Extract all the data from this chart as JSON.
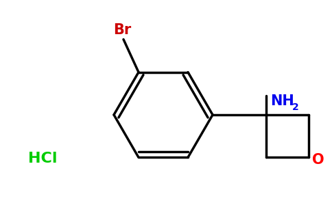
{
  "background_color": "#ffffff",
  "bond_color": "#000000",
  "br_color": "#cc0000",
  "nh2_color": "#0000ee",
  "o_color": "#ff0000",
  "hcl_color": "#00cc00",
  "br_label": "Br",
  "nh2_label": "NH",
  "nh2_sub": "2",
  "o_label": "O",
  "hcl_label": "HCl",
  "figsize": [
    4.84,
    3.0
  ],
  "dpi": 100
}
